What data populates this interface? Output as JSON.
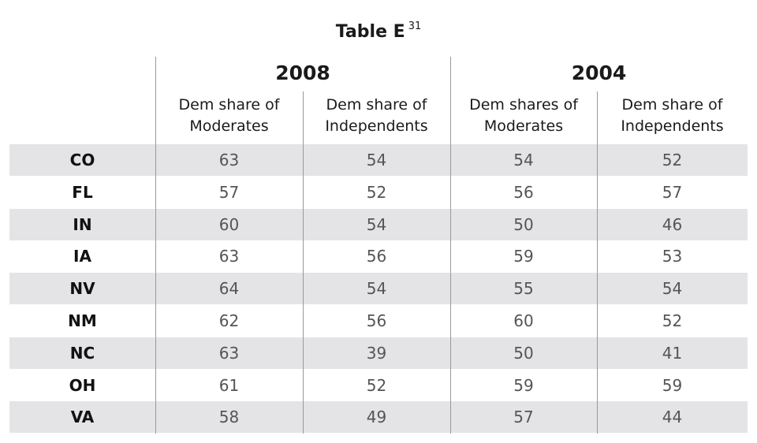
{
  "title": "Table E",
  "footnote": "31",
  "groups": [
    "2008",
    "2004"
  ],
  "columns": [
    [
      "Dem share of",
      "Moderates"
    ],
    [
      "Dem share of",
      "Independents"
    ],
    [
      "Dem shares of",
      "Moderates"
    ],
    [
      "Dem share of",
      "Independents"
    ]
  ],
  "rows": [
    {
      "state": "CO",
      "values": [
        63,
        54,
        54,
        52
      ]
    },
    {
      "state": "FL",
      "values": [
        57,
        52,
        56,
        57
      ]
    },
    {
      "state": "IN",
      "values": [
        60,
        54,
        50,
        46
      ]
    },
    {
      "state": "IA",
      "values": [
        63,
        56,
        59,
        53
      ]
    },
    {
      "state": "NV",
      "values": [
        64,
        54,
        55,
        54
      ]
    },
    {
      "state": "NM",
      "values": [
        62,
        56,
        60,
        52
      ]
    },
    {
      "state": "NC",
      "values": [
        63,
        39,
        50,
        41
      ]
    },
    {
      "state": "OH",
      "values": [
        61,
        52,
        59,
        59
      ]
    },
    {
      "state": "VA",
      "values": [
        58,
        49,
        57,
        44
      ]
    }
  ]
}
